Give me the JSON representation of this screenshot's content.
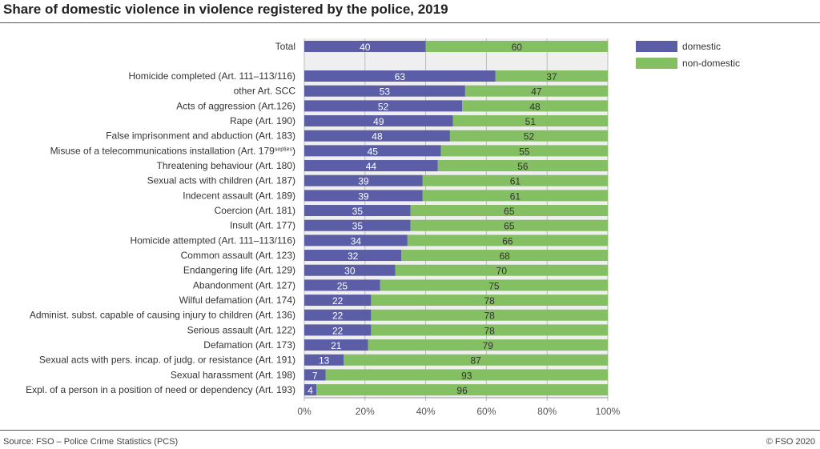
{
  "chart_data": {
    "type": "bar",
    "stacked": true,
    "orientation": "horizontal",
    "title": "Share of domestic violence in violence registered by the police, 2019",
    "categories": [
      "Total",
      "Homicide completed (Art. 111–113/116)",
      "other Art. SCC",
      "Acts of aggression (Art.126)",
      "Rape (Art. 190)",
      "False imprisonment and abduction (Art. 183)",
      "Misuse of a telecommunications installation (Art. 179septies)",
      "Threatening behaviour (Art. 180)",
      "Sexual acts with children (Art. 187)",
      "Indecent assault (Art. 189)",
      "Coercion (Art. 181)",
      "Insult (Art. 177)",
      "Homicide attempted (Art. 111–113/116)",
      "Common assault (Art. 123)",
      "Endangering life  (Art. 129)",
      "Abandonment (Art. 127)",
      "Wilful defamation (Art. 174)",
      "Administ. subst. capable of causing injury to children (Art. 136)",
      "Serious assault (Art. 122)",
      "Defamation (Art. 173)",
      "Sexual acts with pers. incap. of judg. or resistance (Art. 191)",
      "Sexual harassment (Art. 198)",
      "Expl. of a person in a position of need or dependency (Art. 193)"
    ],
    "series": [
      {
        "name": "domestic",
        "color": "#5b5ea6",
        "values": [
          40,
          63,
          53,
          52,
          49,
          48,
          45,
          44,
          39,
          39,
          35,
          35,
          34,
          32,
          30,
          25,
          22,
          22,
          22,
          21,
          13,
          7,
          4
        ]
      },
      {
        "name": "non-domestic",
        "color": "#85bf63",
        "values": [
          60,
          37,
          47,
          48,
          51,
          52,
          55,
          56,
          61,
          61,
          65,
          65,
          66,
          68,
          70,
          75,
          78,
          78,
          78,
          79,
          87,
          93,
          96
        ]
      }
    ],
    "xlim": [
      0,
      100
    ],
    "xticks": [
      "0%",
      "20%",
      "40%",
      "60%",
      "80%",
      "100%"
    ],
    "grid": true,
    "legend": "top-right"
  },
  "source": "Source: FSO – Police Crime Statistics (PCS)",
  "copyright": "© FSO 2020"
}
